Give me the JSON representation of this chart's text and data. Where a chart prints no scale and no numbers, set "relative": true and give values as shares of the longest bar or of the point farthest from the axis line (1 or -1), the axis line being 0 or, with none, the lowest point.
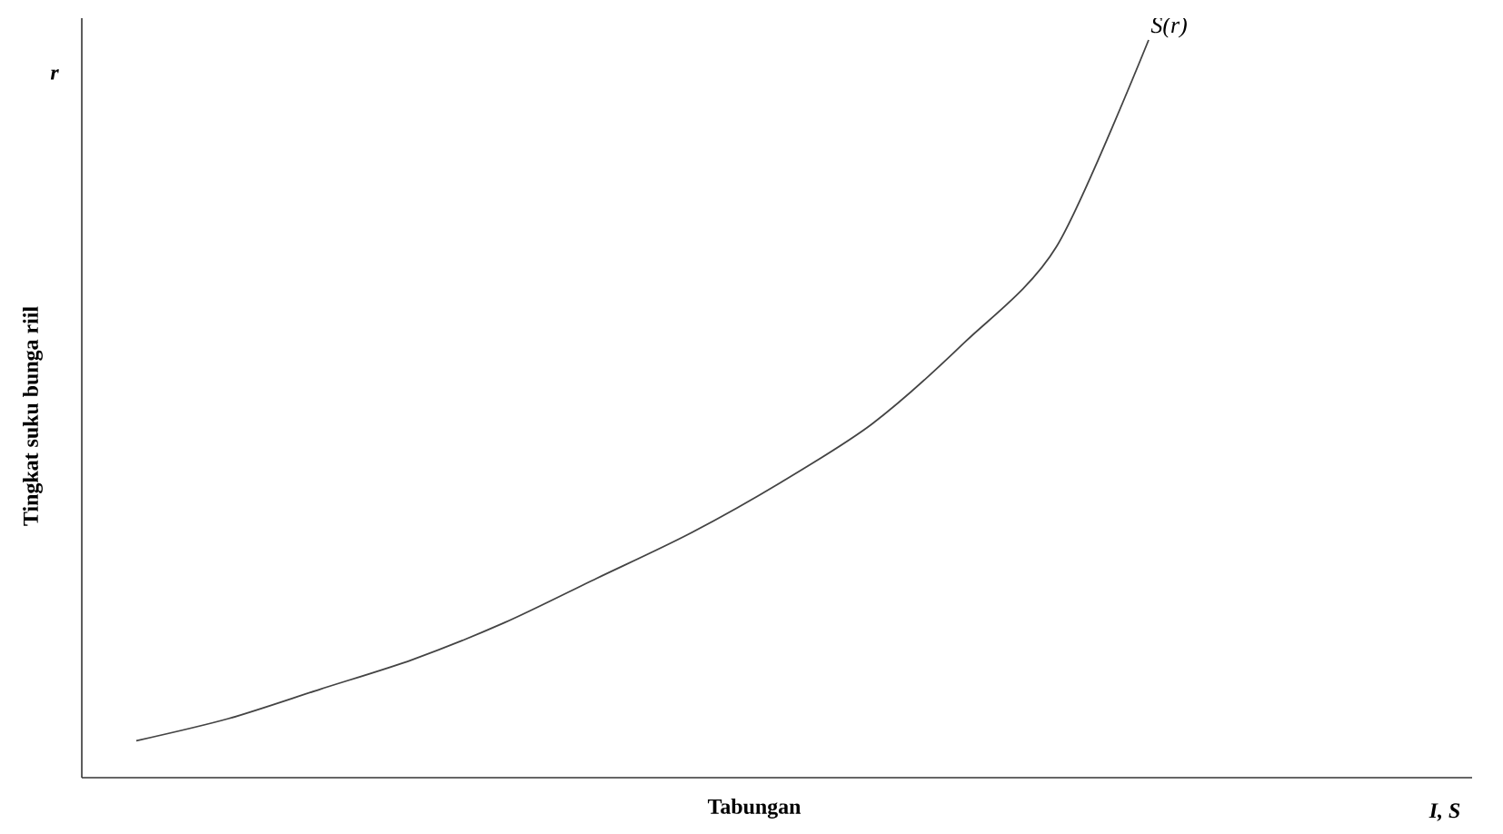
{
  "chart_data": {
    "type": "line",
    "relative": true,
    "xlabel": "Tabungan",
    "ylabel": "Tingkat suku bunga riil",
    "annotations": [
      "r",
      "I, S"
    ],
    "categories": [
      null,
      null,
      null,
      null,
      null,
      null,
      null,
      null,
      null,
      null,
      null,
      null
    ],
    "series": [
      {
        "name": "S(r)",
        "color": "#444444",
        "values": [
          0.05,
          0.08,
          0.12,
          0.16,
          0.21,
          0.27,
          0.33,
          0.4,
          0.48,
          0.59,
          0.72,
          1.0
        ]
      }
    ]
  }
}
